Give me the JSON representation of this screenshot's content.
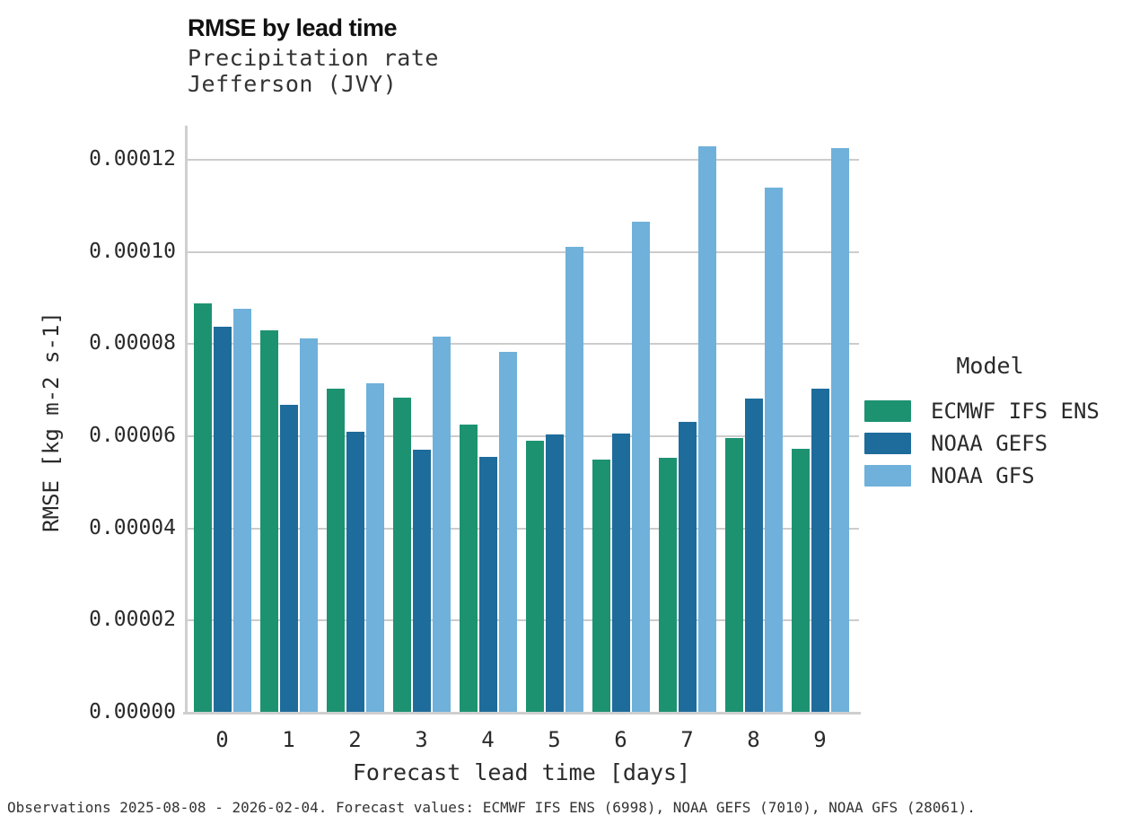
{
  "header": {
    "title": "RMSE by lead time",
    "subtitle_line1": "Precipitation rate",
    "subtitle_line2": "Jefferson (JVY)"
  },
  "legend": {
    "title": "Model"
  },
  "caption": "Observations 2025-08-08 - 2026-02-04. Forecast values: ECMWF IFS ENS (6998), NOAA GEFS (7010), NOAA GFS (28061).",
  "colors": {
    "grid": "#cccccc",
    "spine": "#cfcfcf",
    "ecmwf_green": "#1d9271",
    "gefs_blue": "#1e6c9b",
    "gfs_lightblue": "#6fb1da"
  },
  "chart_data": {
    "type": "bar",
    "title": "RMSE by lead time",
    "subtitle": [
      "Precipitation rate",
      "Jefferson (JVY)"
    ],
    "xlabel": "Forecast lead time [days]",
    "ylabel": "RMSE [kg m-2 s-1]",
    "categories": [
      "0",
      "1",
      "2",
      "3",
      "4",
      "5",
      "6",
      "7",
      "8",
      "9"
    ],
    "series": [
      {
        "name": "ECMWF IFS ENS",
        "color": "#1d9271",
        "values": [
          8.88e-05,
          8.29e-05,
          7.03e-05,
          6.84e-05,
          6.25e-05,
          5.91e-05,
          5.49e-05,
          5.54e-05,
          5.96e-05,
          5.73e-05
        ]
      },
      {
        "name": "NOAA GEFS",
        "color": "#1e6c9b",
        "values": [
          8.38e-05,
          6.68e-05,
          6.1e-05,
          5.71e-05,
          5.55e-05,
          6.04e-05,
          6.06e-05,
          6.31e-05,
          6.81e-05,
          7.04e-05
        ]
      },
      {
        "name": "NOAA GFS",
        "color": "#6fb1da",
        "values": [
          8.76e-05,
          8.13e-05,
          7.14e-05,
          8.16e-05,
          7.83e-05,
          0.0001011,
          0.0001066,
          0.000123,
          0.000114,
          0.0001226
        ]
      }
    ],
    "ylim": [
      0,
      0.000128
    ],
    "yticks": [
      0,
      2e-05,
      4e-05,
      6e-05,
      8e-05,
      0.0001,
      0.00012
    ],
    "ytick_labels": [
      "0.00000",
      "0.00002",
      "0.00004",
      "0.00006",
      "0.00008",
      "0.00010",
      "0.00012"
    ],
    "grid": "horizontal",
    "legend_title": "Model",
    "legend_position": "right"
  }
}
